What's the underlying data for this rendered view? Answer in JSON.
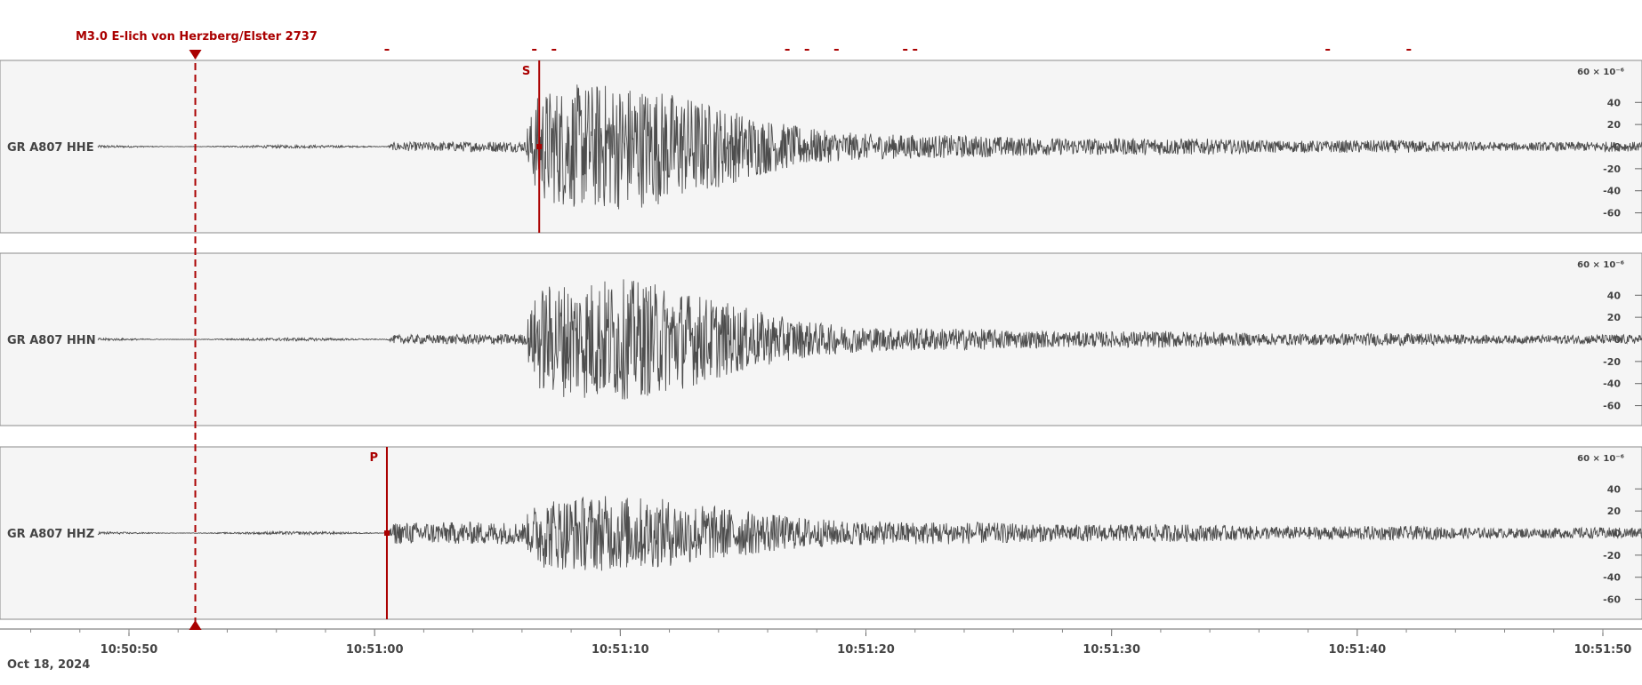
{
  "chart_data": {
    "type": "line",
    "title": "",
    "event": {
      "label": "M3.0 E-lich von Herzberg/Elster 2737",
      "time": "10:50:52.7"
    },
    "date_label": "Oct 18, 2024",
    "x_ticks": [
      "10:50:50",
      "10:51:00",
      "10:51:10",
      "10:51:20",
      "10:51:30",
      "10:51:40",
      "10:51:50"
    ],
    "x_range": [
      "10:50:45",
      "10:51:51"
    ],
    "y_range": [
      -70,
      70
    ],
    "y_unit_label": "60 × 10⁻⁶",
    "y_ticks": [
      "40",
      "20",
      "0",
      "-20",
      "-40",
      "-60"
    ],
    "top_marker_times": [
      "10:51:00.5",
      "10:51:06.5",
      "10:51:07.3",
      "10:51:16.8",
      "10:51:17.6",
      "10:51:18.8",
      "10:51:21.6",
      "10:51:22.0",
      "10:51:38.8",
      "10:51:42.1"
    ],
    "channels": [
      {
        "name": "GR A807  HHE",
        "pick": {
          "phase": "S",
          "time": "10:51:06.7"
        }
      },
      {
        "name": "GR A807  HHN",
        "pick": null
      },
      {
        "name": "GR A807  HHZ",
        "pick": {
          "phase": "P",
          "time": "10:51:00.5"
        }
      }
    ],
    "colors": {
      "pick": "#aa0000",
      "trace": "#4d4d4d",
      "panel_bg": "#f5f5f5",
      "axis_text": "#444444"
    },
    "grid": false
  }
}
